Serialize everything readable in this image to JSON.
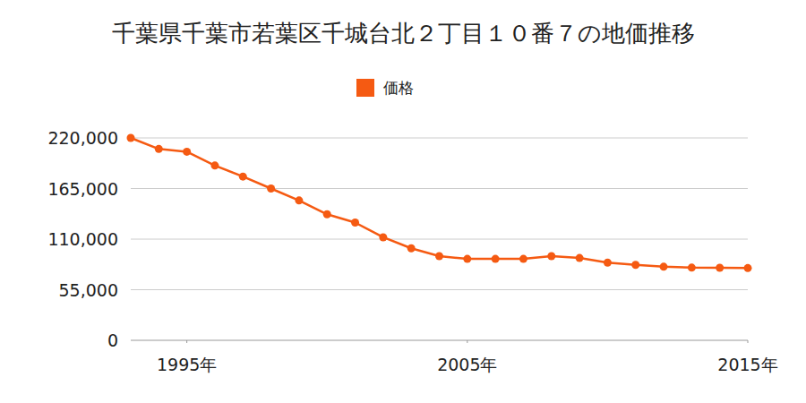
{
  "chart_data": {
    "type": "line",
    "title": "千葉県千葉市若葉区千城台北２丁目１０番７の地価推移",
    "x": [
      1993,
      1994,
      1995,
      1996,
      1997,
      1998,
      1999,
      2000,
      2001,
      2002,
      2003,
      2004,
      2005,
      2006,
      2007,
      2008,
      2009,
      2010,
      2011,
      2012,
      2013,
      2014,
      2015
    ],
    "series": [
      {
        "name": "価格",
        "color": "#f55a12",
        "marker": "circle",
        "values": [
          220000,
          208000,
          205000,
          190000,
          178000,
          165000,
          152000,
          137000,
          128000,
          112000,
          100000,
          91500,
          88500,
          88500,
          88500,
          91500,
          89500,
          84500,
          82000,
          80000,
          79000,
          78800,
          78500
        ]
      }
    ],
    "xlim": [
      1993,
      2015
    ],
    "xticks": [
      {
        "value": 1995,
        "label": "1995年"
      },
      {
        "value": 2005,
        "label": "2005年"
      },
      {
        "value": 2015,
        "label": "2015年"
      }
    ],
    "ylim": [
      0,
      220000
    ],
    "yticks": [
      0,
      {
        "value": 55000,
        "label": "55,000"
      },
      {
        "value": 110000,
        "label": "110,000"
      },
      {
        "value": 165000,
        "label": "165,000"
      },
      {
        "value": 220000,
        "label": "220,000"
      }
    ],
    "grid": true,
    "legend": "top"
  }
}
